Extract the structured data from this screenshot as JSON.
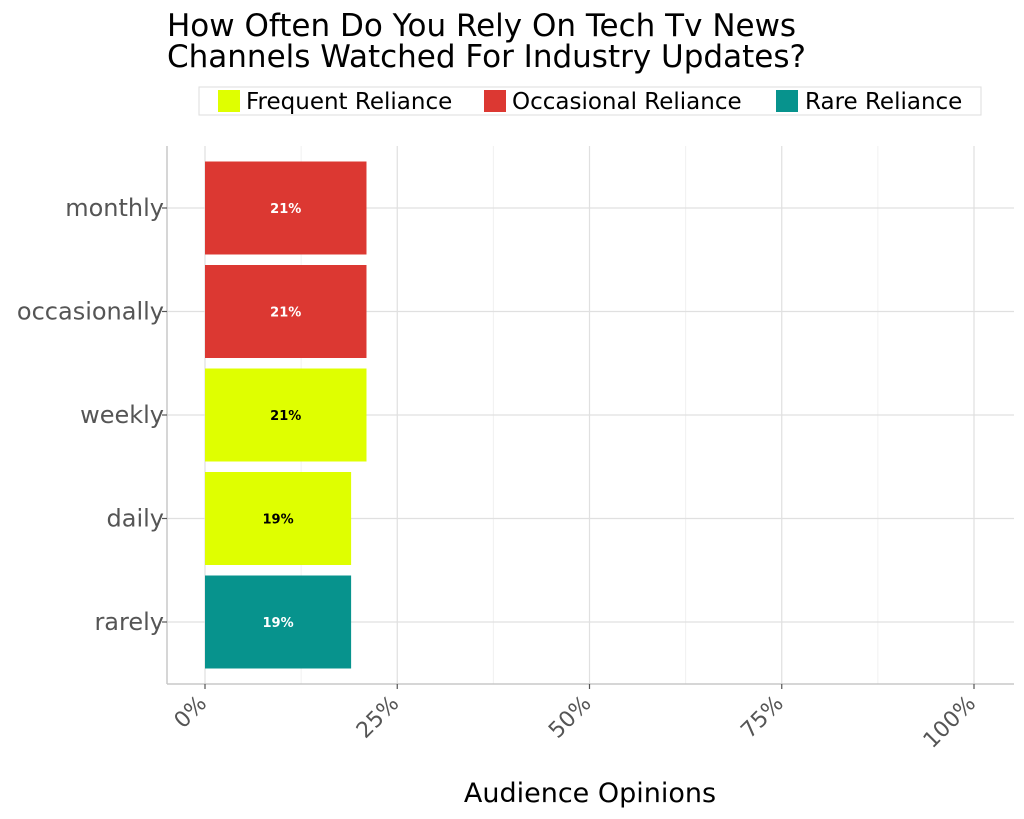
{
  "chart_data": {
    "type": "bar",
    "orientation": "horizontal",
    "title_lines": [
      "How Often Do You Rely On Tech Tv News",
      "Channels Watched For Industry Updates?"
    ],
    "xlabel": "Audience Opinions",
    "ylabel": "",
    "xlim": [
      0,
      100
    ],
    "x_ticks": [
      0,
      25,
      50,
      75,
      100
    ],
    "x_tick_labels": [
      "0%",
      "25%",
      "50%",
      "75%",
      "100%"
    ],
    "grid": true,
    "legend_position": "top",
    "legend": [
      {
        "name": "Frequent Reliance",
        "color": "#dfff00"
      },
      {
        "name": "Occasional Reliance",
        "color": "#dc3832"
      },
      {
        "name": "Rare Reliance",
        "color": "#07938d"
      }
    ],
    "categories": [
      "monthly",
      "occasionally",
      "weekly",
      "daily",
      "rarely"
    ],
    "values": [
      21,
      21,
      21,
      19,
      19
    ],
    "data_labels": [
      "21%",
      "21%",
      "21%",
      "19%",
      "19%"
    ],
    "bar_groups": [
      "Occasional Reliance",
      "Occasional Reliance",
      "Frequent Reliance",
      "Frequent Reliance",
      "Rare Reliance"
    ],
    "bar_colors": [
      "#dc3832",
      "#dc3832",
      "#dfff00",
      "#dfff00",
      "#07938d"
    ],
    "label_colors": [
      "#ffffff",
      "#ffffff",
      "#000000",
      "#000000",
      "#ffffff"
    ]
  }
}
